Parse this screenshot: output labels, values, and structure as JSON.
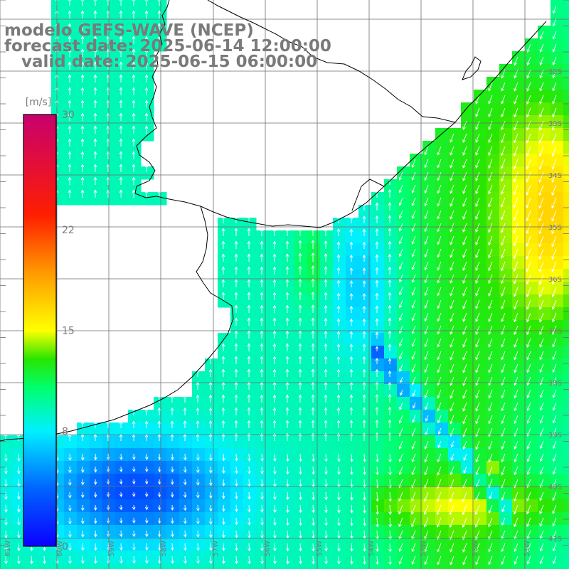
{
  "title": {
    "model": "modelo GEFS-WAVE (NCEP)",
    "forecast": "forecast date: 2025-06-14 12:00:00",
    "valid": "   valid date: 2025-06-15 06:00:00"
  },
  "colorbar": {
    "unit": "[m/s]",
    "ticks": [
      {
        "value": 30,
        "label": "30"
      },
      {
        "value": 22,
        "label": "22"
      },
      {
        "value": 15,
        "label": "15"
      },
      {
        "value": 8,
        "label": "8"
      },
      {
        "value": 0,
        "label": "0"
      }
    ],
    "range": [
      0,
      30
    ],
    "stops": [
      {
        "value": 0,
        "color": "#0a00ff"
      },
      {
        "value": 4,
        "color": "#0064ff"
      },
      {
        "value": 8,
        "color": "#00f0ff"
      },
      {
        "value": 11,
        "color": "#00ff6e"
      },
      {
        "value": 13,
        "color": "#28e600"
      },
      {
        "value": 15,
        "color": "#ffff00"
      },
      {
        "value": 19,
        "color": "#ff9a00"
      },
      {
        "value": 23,
        "color": "#ff1e00"
      },
      {
        "value": 30,
        "color": "#c8006e"
      }
    ]
  },
  "lat_labels": [
    "32S",
    "33S",
    "34S",
    "35S",
    "36S",
    "37S",
    "38S",
    "39S",
    "40S",
    "41S"
  ],
  "lon_labels": [
    "61W",
    "60W",
    "59W",
    "58W",
    "57W",
    "56W",
    "55W",
    "54W",
    "53W",
    "52W",
    "51W"
  ],
  "colors": {
    "grid": "#6e6e6e",
    "coast": "#000000",
    "arrow": "#ffffff",
    "label": "#7a7a7a"
  }
}
